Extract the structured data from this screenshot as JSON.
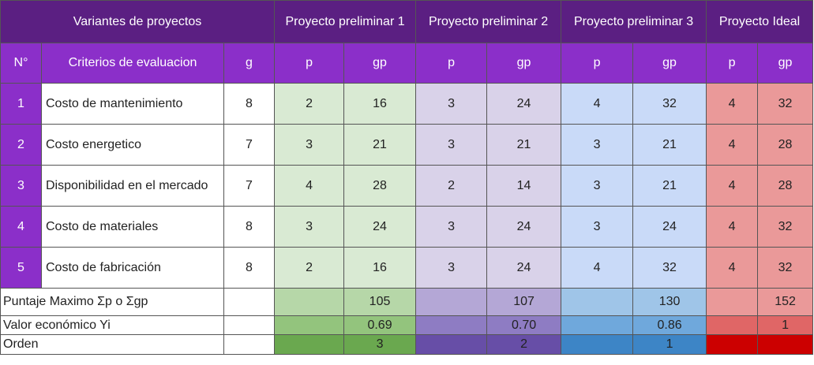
{
  "header": {
    "variants": "Variantes de proyectos",
    "projects": [
      "Proyecto preliminar 1",
      "Proyecto preliminar 2",
      "Proyecto preliminar 3",
      "Proyecto Ideal"
    ],
    "num": "N°",
    "criteria": "Criterios de evaluacion",
    "g": "g",
    "p": "p",
    "gp": "gp"
  },
  "rows": [
    {
      "n": "1",
      "criterio": "Costo de mantenimiento",
      "g": "8",
      "p1": "2",
      "gp1": "16",
      "p2": "3",
      "gp2": "24",
      "p3": "4",
      "gp3": "32",
      "pi": "4",
      "gpi": "32"
    },
    {
      "n": "2",
      "criterio": "Costo energetico",
      "g": "7",
      "p1": "3",
      "gp1": "21",
      "p2": "3",
      "gp2": "21",
      "p3": "3",
      "gp3": "21",
      "pi": "4",
      "gpi": "28"
    },
    {
      "n": "3",
      "criterio": "Disponibilidad en el mercado",
      "g": "7",
      "p1": "4",
      "gp1": "28",
      "p2": "2",
      "gp2": "14",
      "p3": "3",
      "gp3": "21",
      "pi": "4",
      "gpi": "28"
    },
    {
      "n": "4",
      "criterio": "Costo de materiales",
      "g": "8",
      "p1": "3",
      "gp1": "24",
      "p2": "3",
      "gp2": "24",
      "p3": "3",
      "gp3": "24",
      "pi": "4",
      "gpi": "32"
    },
    {
      "n": "5",
      "criterio": "Costo de fabricación",
      "g": "8",
      "p1": "2",
      "gp1": "16",
      "p2": "3",
      "gp2": "24",
      "p3": "4",
      "gp3": "32",
      "pi": "4",
      "gpi": "32"
    }
  ],
  "summary": {
    "label": "Puntaje Maximo Σp o Σgp",
    "values": [
      "105",
      "107",
      "130",
      "152"
    ]
  },
  "valor": {
    "label": "Valor económico Yi",
    "values": [
      "0.69",
      "0.70",
      "0.86",
      "1"
    ]
  },
  "orden": {
    "label": "Orden",
    "values": [
      "3",
      "2",
      "1",
      ""
    ]
  },
  "colors": {
    "header_dark": "#5b1f82",
    "header_light": "#8b2fc9",
    "p1": "#d9ead3",
    "p2": "#d9d2e9",
    "p3": "#c9daf8",
    "ideal": "#ea9999",
    "orden_p1": "#6aa84f",
    "orden_p2": "#674ea7",
    "orden_p3": "#3d85c6",
    "orden_ideal": "#cc0000"
  }
}
